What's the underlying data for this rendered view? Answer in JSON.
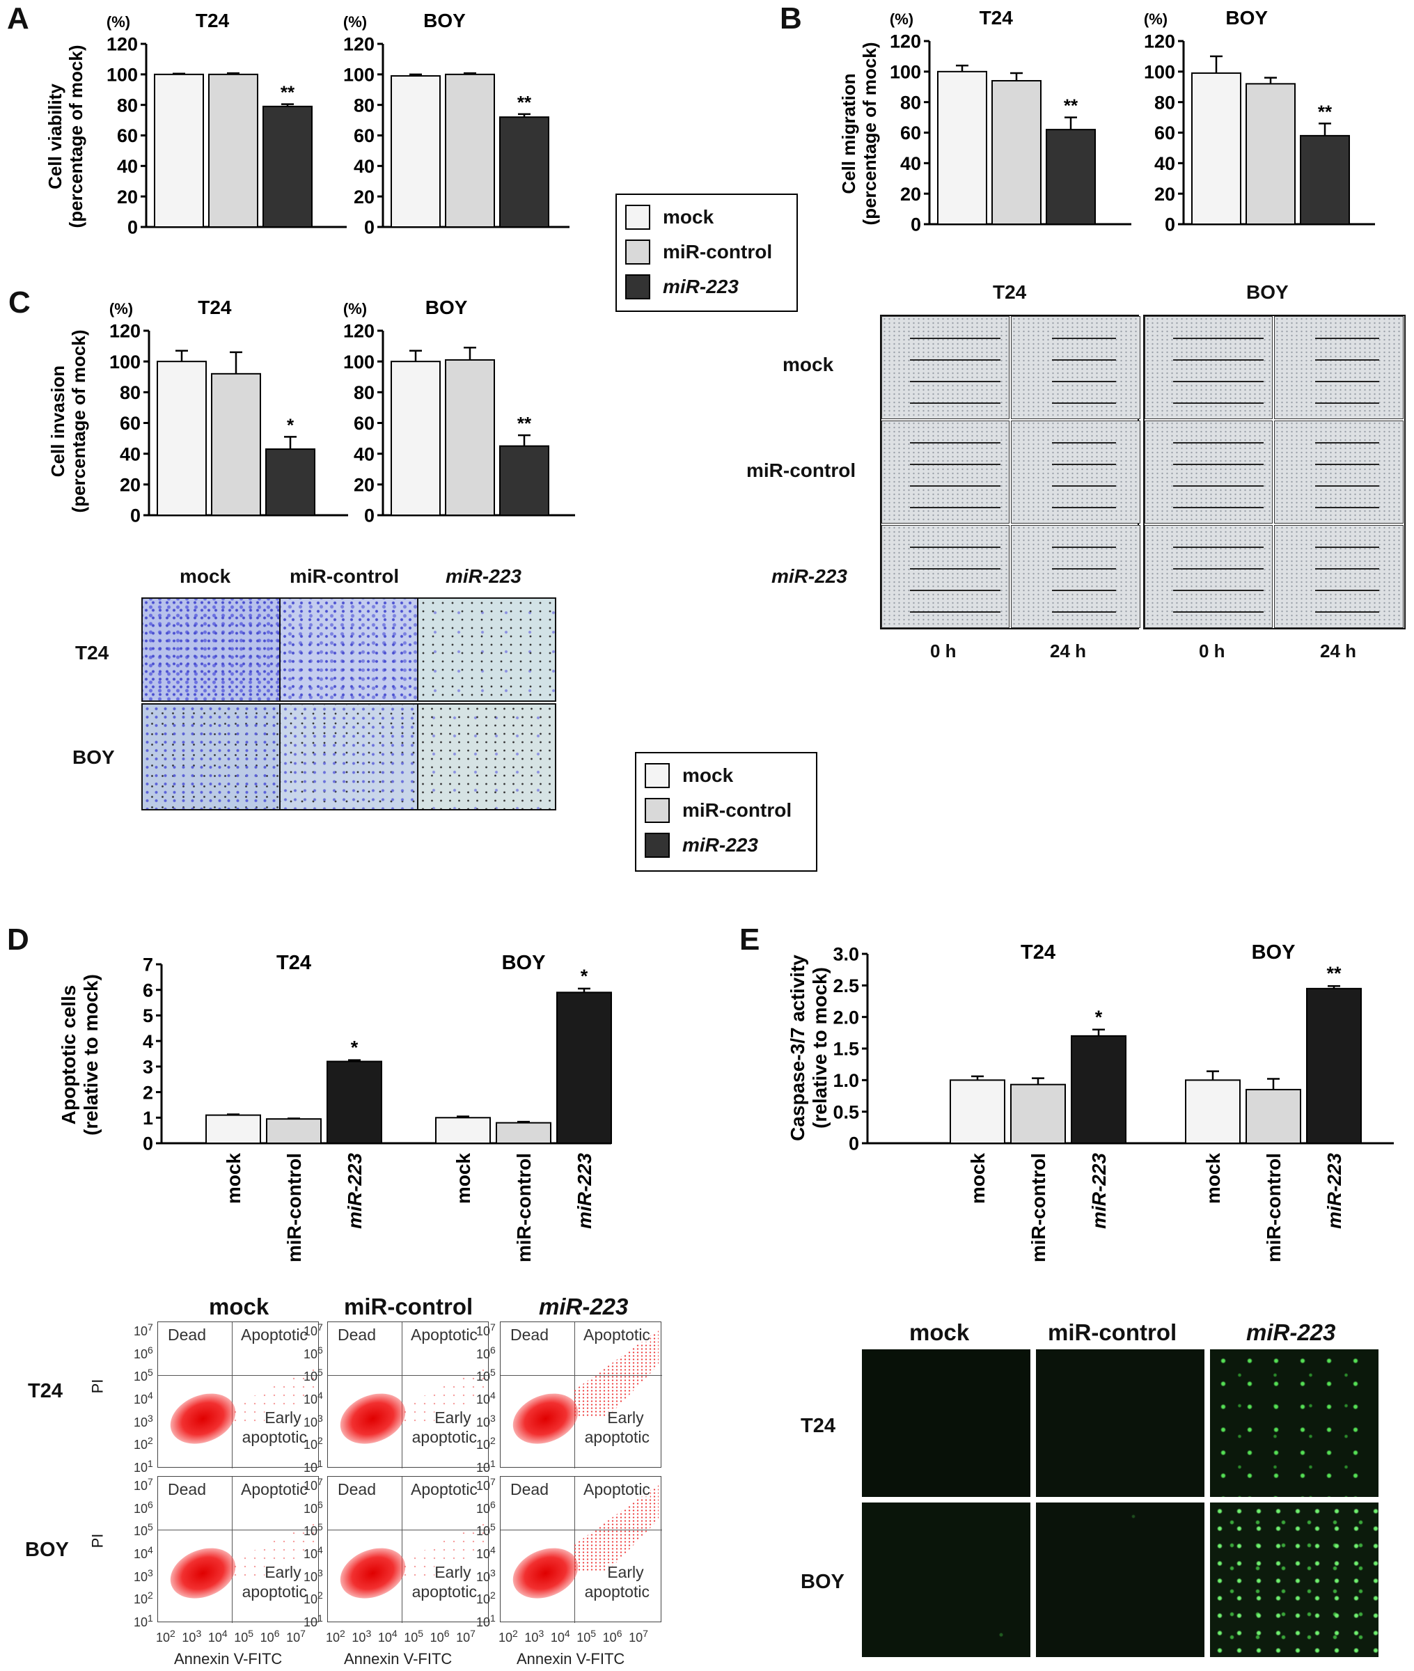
{
  "panels": {
    "A": "A",
    "B": "B",
    "C": "C",
    "D": "D",
    "E": "E"
  },
  "legend": {
    "mock": "mock",
    "control": "miR-control",
    "mir": "miR-223",
    "colors": {
      "mock": "#f4f4f4",
      "control": "#d9d9d9",
      "mir": "#333333"
    }
  },
  "chart_data": [
    {
      "id": "A-T24",
      "type": "bar",
      "panel": "A",
      "title": "T24",
      "ylabel_line1": "Cell viability",
      "ylabel_line2": "(percentage of mock)",
      "unit": "(%)",
      "ylim": [
        0,
        120
      ],
      "yticks": [
        "0",
        "20",
        "40",
        "60",
        "80",
        "100",
        "120"
      ],
      "categories": [
        "mock",
        "miR-control",
        "miR-223"
      ],
      "values": [
        100,
        100,
        79
      ],
      "errors": [
        0.5,
        0.8,
        1.5
      ],
      "annotations": [
        "",
        "",
        "**"
      ]
    },
    {
      "id": "A-BOY",
      "type": "bar",
      "panel": "A",
      "title": "BOY",
      "unit": "(%)",
      "ylim": [
        0,
        120
      ],
      "yticks": [
        "0",
        "20",
        "40",
        "60",
        "80",
        "100",
        "120"
      ],
      "categories": [
        "mock",
        "miR-control",
        "miR-223"
      ],
      "values": [
        99,
        100,
        72
      ],
      "errors": [
        1,
        0.8,
        2
      ],
      "annotations": [
        "",
        "",
        "**"
      ]
    },
    {
      "id": "B-T24",
      "type": "bar",
      "panel": "B",
      "title": "T24",
      "ylabel_line1": "Cell migration",
      "ylabel_line2": "(percentage of mock)",
      "unit": "(%)",
      "ylim": [
        0,
        120
      ],
      "yticks": [
        "0",
        "20",
        "40",
        "60",
        "80",
        "100",
        "120"
      ],
      "categories": [
        "mock",
        "miR-control",
        "miR-223"
      ],
      "values": [
        100,
        94,
        62
      ],
      "errors": [
        4,
        5,
        8
      ],
      "annotations": [
        "",
        "",
        "**"
      ]
    },
    {
      "id": "B-BOY",
      "type": "bar",
      "panel": "B",
      "title": "BOY",
      "unit": "(%)",
      "ylim": [
        0,
        120
      ],
      "yticks": [
        "0",
        "20",
        "40",
        "60",
        "80",
        "100",
        "120"
      ],
      "categories": [
        "mock",
        "miR-control",
        "miR-223"
      ],
      "values": [
        99,
        92,
        58
      ],
      "errors": [
        11,
        4,
        8
      ],
      "annotations": [
        "",
        "",
        "**"
      ]
    },
    {
      "id": "C-T24",
      "type": "bar",
      "panel": "C",
      "title": "T24",
      "ylabel_line1": "Cell invasion",
      "ylabel_line2": "(percentage of mock)",
      "unit": "(%)",
      "ylim": [
        0,
        120
      ],
      "yticks": [
        "0",
        "20",
        "40",
        "60",
        "80",
        "100",
        "120"
      ],
      "categories": [
        "mock",
        "miR-control",
        "miR-223"
      ],
      "values": [
        100,
        92,
        43
      ],
      "errors": [
        7,
        14,
        8
      ],
      "annotations": [
        "",
        "",
        "*"
      ]
    },
    {
      "id": "C-BOY",
      "type": "bar",
      "panel": "C",
      "title": "BOY",
      "unit": "(%)",
      "ylim": [
        0,
        120
      ],
      "yticks": [
        "0",
        "20",
        "40",
        "60",
        "80",
        "100",
        "120"
      ],
      "categories": [
        "mock",
        "miR-control",
        "miR-223"
      ],
      "values": [
        100,
        101,
        45
      ],
      "errors": [
        7,
        8,
        7
      ],
      "annotations": [
        "",
        "",
        "**"
      ]
    },
    {
      "id": "D",
      "type": "bar",
      "panel": "D",
      "ylabel_line1": "Apoptotic cells",
      "ylabel_line2": "(relative to mock)",
      "ylim": [
        0,
        7
      ],
      "yticks": [
        "0",
        "1",
        "2",
        "3",
        "4",
        "5",
        "6",
        "7"
      ],
      "groups": [
        "T24",
        "BOY"
      ],
      "categories": [
        "mock",
        "miR-control",
        "miR-223"
      ],
      "series": [
        {
          "group": "T24",
          "values": [
            1.1,
            0.95,
            3.2
          ],
          "errors": [
            0.03,
            0.02,
            0.05
          ],
          "annotations": [
            "",
            "",
            "*"
          ]
        },
        {
          "group": "BOY",
          "values": [
            1.0,
            0.8,
            5.9
          ],
          "errors": [
            0.05,
            0.04,
            0.15
          ],
          "annotations": [
            "",
            "",
            "*"
          ]
        }
      ]
    },
    {
      "id": "E",
      "type": "bar",
      "panel": "E",
      "ylabel_line1": "Caspase-3/7 activity",
      "ylabel_line2": "(relative to  mock)",
      "ylim": [
        0,
        3.0
      ],
      "yticks": [
        "0",
        "0.5",
        "1.0",
        "1.5",
        "2.0",
        "2.5",
        "3.0"
      ],
      "groups": [
        "T24",
        "BOY"
      ],
      "categories": [
        "mock",
        "miR-control",
        "miR-223"
      ],
      "series": [
        {
          "group": "T24",
          "values": [
            1.0,
            0.93,
            1.7
          ],
          "errors": [
            0.06,
            0.1,
            0.1
          ],
          "annotations": [
            "",
            "",
            "*"
          ]
        },
        {
          "group": "BOY",
          "values": [
            1.0,
            0.85,
            2.45
          ],
          "errors": [
            0.14,
            0.17,
            0.04
          ],
          "annotations": [
            "",
            "",
            "**"
          ]
        }
      ]
    }
  ],
  "invasion_images": {
    "cols": [
      "mock",
      "miR-control",
      "miR-223"
    ],
    "rows": [
      "T24",
      "BOY"
    ]
  },
  "wound_images": {
    "cells": [
      "T24",
      "BOY"
    ],
    "rows": [
      "mock",
      "miR-control",
      "miR-223"
    ],
    "times": [
      "0 h",
      "24 h",
      "0 h",
      "24 h"
    ]
  },
  "flow": {
    "cols": [
      "mock",
      "miR-control",
      "miR-223"
    ],
    "rows": [
      "T24",
      "BOY"
    ],
    "quadrant_dead": "Dead",
    "quadrant_apoptotic": "Apoptotic",
    "quadrant_early_1": "Early",
    "quadrant_early_2": "apoptotic",
    "ylabel": "PI",
    "xlabel": "Annexin V-FITC",
    "ticks_base": "10",
    "ticks_exp": [
      "1",
      "2",
      "3",
      "4",
      "5",
      "6",
      "7"
    ]
  },
  "caspase_images": {
    "cols": [
      "mock",
      "miR-control",
      "miR-223"
    ],
    "rows": [
      "T24",
      "BOY"
    ]
  }
}
